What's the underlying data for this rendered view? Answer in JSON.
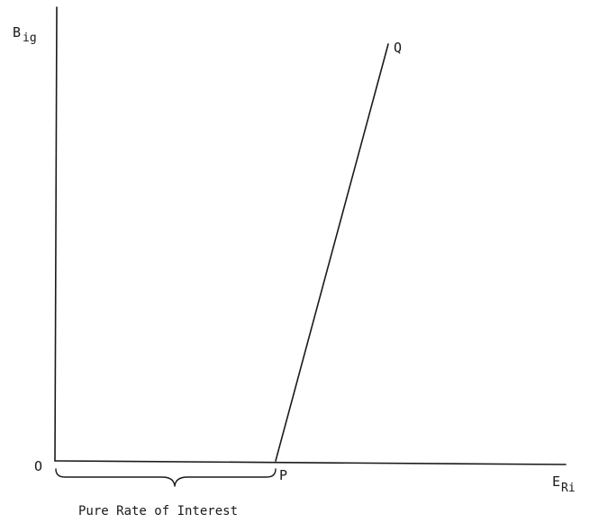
{
  "y_axis_label": {
    "main": "B",
    "sub": "ig"
  },
  "x_axis_label": {
    "main": "E",
    "sub": "Ri"
  },
  "origin_label": "O",
  "point_p_label": "P",
  "point_q_label": "Q",
  "brace_caption": "Pure Rate of Interest"
}
